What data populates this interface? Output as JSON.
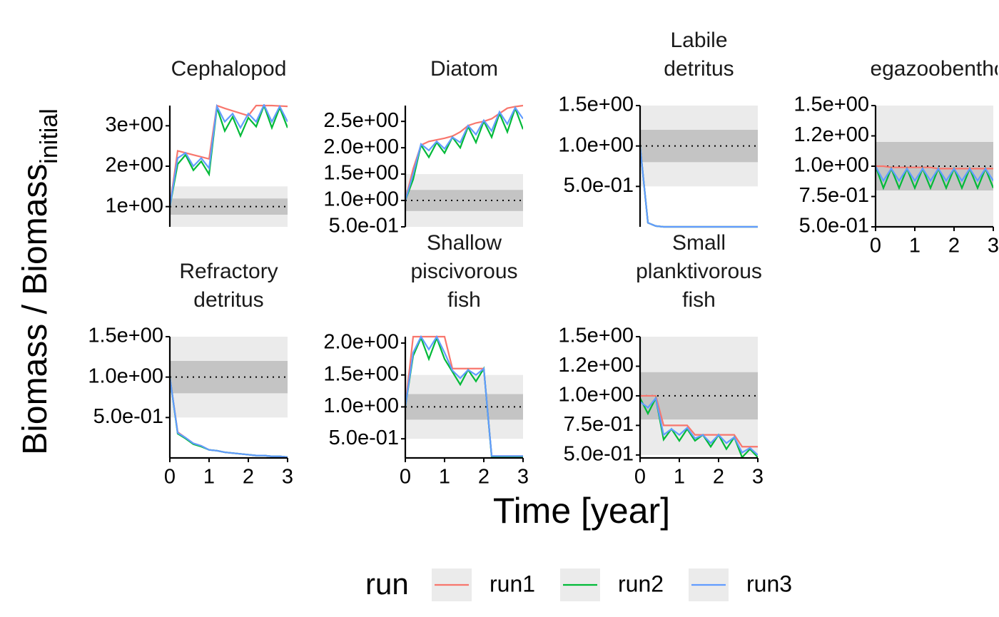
{
  "chart_data": [
    {
      "type": "line",
      "title": [
        "Cephalopod"
      ],
      "x": [
        0,
        0.2,
        0.4,
        0.6,
        0.8,
        1.0,
        1.2,
        1.4,
        1.6,
        1.8,
        2.0,
        2.2,
        2.4,
        2.6,
        2.8,
        3.0
      ],
      "ylim": [
        0.5,
        3.5
      ],
      "yticks": [
        {
          "value": 1,
          "label": "1e+00"
        },
        {
          "value": 2,
          "label": "2e+00"
        },
        {
          "value": 3,
          "label": "3e+00"
        }
      ],
      "xlim": [
        0,
        3
      ],
      "bands": [
        {
          "range": [
            0.5,
            1.5
          ],
          "color": "#ebebeb"
        },
        {
          "range": [
            0.8,
            1.2
          ],
          "color": "#c4c4c4"
        }
      ],
      "reference_line": 1,
      "series": [
        {
          "name": "run1",
          "color": "#F8766D",
          "values": [
            1.0,
            2.38,
            2.33,
            2.28,
            2.23,
            2.18,
            3.5,
            3.43,
            3.37,
            3.31,
            3.25,
            3.5,
            3.5,
            3.5,
            3.49,
            3.48
          ]
        },
        {
          "name": "run2",
          "color": "#00BA38",
          "values": [
            1.0,
            2.05,
            2.28,
            1.9,
            2.12,
            1.8,
            3.45,
            2.87,
            3.22,
            2.75,
            3.2,
            2.98,
            3.5,
            2.95,
            3.45,
            2.95
          ]
        },
        {
          "name": "run3",
          "color": "#619CFF",
          "values": [
            1.0,
            2.2,
            2.33,
            2.0,
            2.2,
            1.95,
            3.48,
            3.1,
            3.3,
            2.95,
            3.3,
            3.1,
            3.52,
            3.1,
            3.48,
            3.1
          ]
        }
      ]
    },
    {
      "type": "line",
      "title": [
        "Diatom"
      ],
      "x": [
        0,
        0.2,
        0.4,
        0.6,
        0.8,
        1.0,
        1.2,
        1.4,
        1.6,
        1.8,
        2.0,
        2.2,
        2.4,
        2.6,
        2.8,
        3.0
      ],
      "ylim": [
        0.5,
        2.8
      ],
      "yticks": [
        {
          "value": 0.5,
          "label": "5.0e-01"
        },
        {
          "value": 1.0,
          "label": "1.0e+00"
        },
        {
          "value": 1.5,
          "label": "1.5e+00"
        },
        {
          "value": 2.0,
          "label": "2.0e+00"
        },
        {
          "value": 2.5,
          "label": "2.5e+00"
        }
      ],
      "xlim": [
        0,
        3
      ],
      "bands": [
        {
          "range": [
            0.5,
            1.5
          ],
          "color": "#ebebeb"
        },
        {
          "range": [
            0.8,
            1.2
          ],
          "color": "#c4c4c4"
        }
      ],
      "reference_line": 1,
      "series": [
        {
          "name": "run1",
          "color": "#F8766D",
          "values": [
            1.0,
            1.6,
            2.05,
            2.12,
            2.15,
            2.18,
            2.22,
            2.3,
            2.42,
            2.47,
            2.5,
            2.55,
            2.65,
            2.75,
            2.78,
            2.8
          ]
        },
        {
          "name": "run2",
          "color": "#00BA38",
          "values": [
            1.0,
            1.4,
            2.05,
            1.82,
            2.1,
            1.9,
            2.2,
            2.0,
            2.4,
            2.1,
            2.5,
            2.2,
            2.65,
            2.3,
            2.75,
            2.35
          ]
        },
        {
          "name": "run3",
          "color": "#619CFF",
          "values": [
            1.0,
            1.5,
            2.07,
            1.95,
            2.12,
            1.98,
            2.2,
            2.1,
            2.42,
            2.25,
            2.52,
            2.32,
            2.68,
            2.45,
            2.76,
            2.55
          ]
        }
      ]
    },
    {
      "type": "line",
      "title": [
        "Labile",
        "detritus"
      ],
      "x": [
        0,
        0.2,
        0.4,
        0.6,
        0.8,
        1.0,
        1.2,
        1.4,
        1.6,
        1.8,
        2.0,
        2.2,
        2.4,
        2.6,
        2.8,
        3.0
      ],
      "ylim": [
        0,
        1.5
      ],
      "yticks": [
        {
          "value": 0.5,
          "label": "5.0e-01"
        },
        {
          "value": 1.0,
          "label": "1.0e+00"
        },
        {
          "value": 1.5,
          "label": "1.5e+00"
        }
      ],
      "xlim": [
        0,
        3
      ],
      "bands": [
        {
          "range": [
            0.5,
            1.5
          ],
          "color": "#ebebeb"
        },
        {
          "range": [
            0.8,
            1.2
          ],
          "color": "#c4c4c4"
        }
      ],
      "reference_line": 1,
      "series": [
        {
          "name": "run1",
          "color": "#F8766D",
          "values": [
            1.0,
            0.05,
            0.01,
            0,
            0,
            0,
            0,
            0,
            0,
            0,
            0,
            0,
            0,
            0,
            0,
            0
          ]
        },
        {
          "name": "run2",
          "color": "#00BA38",
          "values": [
            1.0,
            0.05,
            0.01,
            0,
            0,
            0,
            0,
            0,
            0,
            0,
            0,
            0,
            0,
            0,
            0,
            0
          ]
        },
        {
          "name": "run3",
          "color": "#619CFF",
          "values": [
            1.0,
            0.05,
            0.01,
            0,
            0,
            0,
            0,
            0,
            0,
            0,
            0,
            0,
            0,
            0,
            0,
            0
          ]
        }
      ]
    },
    {
      "type": "line",
      "title": [
        "Megazoobenthos"
      ],
      "x": [
        0,
        0.2,
        0.4,
        0.6,
        0.8,
        1.0,
        1.2,
        1.4,
        1.6,
        1.8,
        2.0,
        2.2,
        2.4,
        2.6,
        2.8,
        3.0
      ],
      "ylim": [
        0.5,
        1.5
      ],
      "yticks": [
        {
          "value": 0.5,
          "label": "5.0e-01"
        },
        {
          "value": 0.75,
          "label": "7.5e-01"
        },
        {
          "value": 1.0,
          "label": "1.0e+00"
        },
        {
          "value": 1.25,
          "label": "1.2e+00"
        },
        {
          "value": 1.5,
          "label": "1.5e+00"
        }
      ],
      "xlim": [
        0,
        3
      ],
      "xticks": [
        0,
        1,
        2,
        3
      ],
      "bands": [
        {
          "range": [
            0.5,
            1.5
          ],
          "color": "#ebebeb"
        },
        {
          "range": [
            0.8,
            1.2
          ],
          "color": "#c4c4c4"
        }
      ],
      "reference_line": 1,
      "series": [
        {
          "name": "run1",
          "color": "#F8766D",
          "values": [
            1.0,
            1.0,
            0.99,
            0.99,
            0.99,
            0.99,
            0.99,
            0.99,
            0.98,
            0.98,
            0.98,
            0.98,
            0.98,
            0.98,
            0.98,
            0.98
          ]
        },
        {
          "name": "run2",
          "color": "#00BA38",
          "values": [
            1.0,
            0.82,
            0.98,
            0.82,
            0.98,
            0.82,
            0.98,
            0.82,
            0.98,
            0.82,
            0.98,
            0.82,
            0.98,
            0.82,
            0.98,
            0.82
          ]
        },
        {
          "name": "run3",
          "color": "#619CFF",
          "values": [
            1.0,
            0.88,
            0.98,
            0.88,
            0.98,
            0.88,
            0.98,
            0.88,
            0.98,
            0.88,
            0.98,
            0.88,
            0.98,
            0.88,
            0.98,
            0.88
          ]
        }
      ]
    },
    {
      "type": "line",
      "title": [
        "Refractory",
        "detritus"
      ],
      "x": [
        0,
        0.2,
        0.4,
        0.6,
        0.8,
        1.0,
        1.2,
        1.4,
        1.6,
        1.8,
        2.0,
        2.2,
        2.4,
        2.6,
        2.8,
        3.0
      ],
      "ylim": [
        0,
        1.5
      ],
      "yticks": [
        {
          "value": 0.5,
          "label": "5.0e-01"
        },
        {
          "value": 1.0,
          "label": "1.0e+00"
        },
        {
          "value": 1.5,
          "label": "1.5e+00"
        }
      ],
      "xlim": [
        0,
        3
      ],
      "xticks": [
        0,
        1,
        2,
        3
      ],
      "bands": [
        {
          "range": [
            0.5,
            1.5
          ],
          "color": "#ebebeb"
        },
        {
          "range": [
            0.8,
            1.2
          ],
          "color": "#c4c4c4"
        }
      ],
      "reference_line": 1,
      "series": [
        {
          "name": "run1",
          "color": "#F8766D",
          "values": [
            1.0,
            0.32,
            0.25,
            0.18,
            0.15,
            0.1,
            0.09,
            0.07,
            0.06,
            0.05,
            0.04,
            0.03,
            0.03,
            0.02,
            0.02,
            0.01
          ]
        },
        {
          "name": "run2",
          "color": "#00BA38",
          "values": [
            1.0,
            0.3,
            0.24,
            0.17,
            0.14,
            0.1,
            0.09,
            0.07,
            0.06,
            0.05,
            0.04,
            0.03,
            0.03,
            0.02,
            0.02,
            0.01
          ]
        },
        {
          "name": "run3",
          "color": "#619CFF",
          "values": [
            1.0,
            0.31,
            0.25,
            0.18,
            0.15,
            0.1,
            0.09,
            0.07,
            0.06,
            0.05,
            0.04,
            0.03,
            0.03,
            0.02,
            0.02,
            0.01
          ]
        }
      ]
    },
    {
      "type": "line",
      "title": [
        "Shallow",
        "piscivorous",
        "fish"
      ],
      "x": [
        0,
        0.2,
        0.4,
        0.6,
        0.8,
        1.0,
        1.2,
        1.4,
        1.6,
        1.8,
        2.0,
        2.2,
        2.4,
        2.6,
        2.8,
        3.0
      ],
      "ylim": [
        0.2,
        2.1
      ],
      "yticks": [
        {
          "value": 0.5,
          "label": "5.0e-01"
        },
        {
          "value": 1.0,
          "label": "1.0e+00"
        },
        {
          "value": 1.5,
          "label": "1.5e+00"
        },
        {
          "value": 2.0,
          "label": "2.0e+00"
        }
      ],
      "xlim": [
        0,
        3
      ],
      "xticks": [
        0,
        1,
        2,
        3
      ],
      "bands": [
        {
          "range": [
            0.5,
            1.5
          ],
          "color": "#ebebeb"
        },
        {
          "range": [
            0.8,
            1.2
          ],
          "color": "#c4c4c4"
        }
      ],
      "reference_line": 1,
      "series": [
        {
          "name": "run1",
          "color": "#F8766D",
          "values": [
            1.0,
            2.1,
            2.1,
            2.1,
            2.1,
            2.1,
            1.6,
            1.6,
            1.6,
            1.6,
            1.6,
            0.23,
            0.23,
            0.23,
            0.23,
            0.23
          ]
        },
        {
          "name": "run2",
          "color": "#00BA38",
          "values": [
            1.0,
            1.8,
            2.08,
            1.75,
            2.08,
            1.75,
            1.55,
            1.35,
            1.58,
            1.4,
            1.6,
            0.22,
            0.22,
            0.22,
            0.22,
            0.22
          ]
        },
        {
          "name": "run3",
          "color": "#619CFF",
          "values": [
            1.0,
            1.85,
            2.1,
            1.9,
            2.1,
            1.85,
            1.57,
            1.45,
            1.58,
            1.5,
            1.6,
            0.23,
            0.23,
            0.23,
            0.23,
            0.23
          ]
        }
      ]
    },
    {
      "type": "line",
      "title": [
        "Small",
        "planktivorous",
        "fish"
      ],
      "x": [
        0,
        0.2,
        0.4,
        0.6,
        0.8,
        1.0,
        1.2,
        1.4,
        1.6,
        1.8,
        2.0,
        2.2,
        2.4,
        2.6,
        2.8,
        3.0
      ],
      "ylim": [
        0.475,
        1.5
      ],
      "yticks": [
        {
          "value": 0.5,
          "label": "5.0e-01"
        },
        {
          "value": 0.75,
          "label": "7.5e-01"
        },
        {
          "value": 1.0,
          "label": "1.0e+00"
        },
        {
          "value": 1.25,
          "label": "1.2e+00"
        },
        {
          "value": 1.5,
          "label": "1.5e+00"
        }
      ],
      "xlim": [
        0,
        3
      ],
      "xticks": [
        0,
        1,
        2,
        3
      ],
      "bands": [
        {
          "range": [
            0.5,
            1.5
          ],
          "color": "#ebebeb"
        },
        {
          "range": [
            0.8,
            1.2
          ],
          "color": "#c4c4c4"
        }
      ],
      "reference_line": 1,
      "series": [
        {
          "name": "run1",
          "color": "#F8766D",
          "values": [
            1.0,
            1.0,
            1.0,
            0.75,
            0.75,
            0.75,
            0.75,
            0.67,
            0.67,
            0.67,
            0.67,
            0.67,
            0.67,
            0.57,
            0.57,
            0.57
          ]
        },
        {
          "name": "run2",
          "color": "#00BA38",
          "values": [
            0.98,
            0.85,
            0.98,
            0.63,
            0.72,
            0.62,
            0.72,
            0.62,
            0.67,
            0.57,
            0.67,
            0.55,
            0.65,
            0.48,
            0.55,
            0.48
          ]
        },
        {
          "name": "run3",
          "color": "#619CFF",
          "values": [
            0.95,
            0.9,
            0.98,
            0.67,
            0.72,
            0.67,
            0.73,
            0.64,
            0.67,
            0.6,
            0.67,
            0.6,
            0.65,
            0.52,
            0.56,
            0.5
          ]
        }
      ]
    }
  ],
  "x_label": "Time [year]",
  "y_label": "Biomass / Biomass",
  "y_label_subscript": "initial",
  "legend_title": "run"
}
